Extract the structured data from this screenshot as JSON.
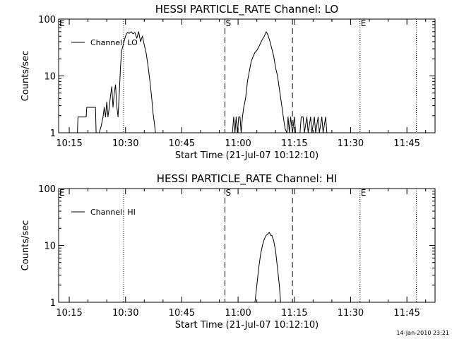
{
  "footer": {
    "timestamp": "14-Jan-2010 23:21"
  },
  "chart_data": [
    {
      "type": "line",
      "title": "HESSI PARTICLE_RATE Channel: LO",
      "xlabel": "Start Time (21-Jul-07 10:12:10)",
      "ylabel": "Counts/sec",
      "y_scale": "log",
      "ylim": [
        1,
        100
      ],
      "xlim": [
        "10:12:10",
        "11:52:30"
      ],
      "x_tick_labels": [
        "10:15",
        "10:30",
        "10:45",
        "11:00",
        "11:15",
        "11:30",
        "11:45"
      ],
      "y_tick_labels": [
        "1",
        "10",
        "100"
      ],
      "legend": {
        "position": "top-left",
        "entries": [
          "Channel: LO"
        ]
      },
      "markers": [
        {
          "label": "E",
          "time": "10:12:10",
          "style": "dotted"
        },
        {
          "label": "",
          "time": "10:29:30",
          "style": "dotted"
        },
        {
          "label": "S",
          "time": "10:56:30",
          "style": "dashed"
        },
        {
          "label": "",
          "time": "11:14:30",
          "style": "dashed"
        },
        {
          "label": "E",
          "time": "11:32:30",
          "style": "dotted"
        },
        {
          "label": "",
          "time": "11:47:30",
          "style": "dotted"
        }
      ],
      "series": [
        {
          "name": "Channel: LO",
          "segments": [
            {
              "x": [
                "10:17:10",
                "10:17:20",
                "10:19:30",
                "10:19:40",
                "10:22:00",
                "10:22:10",
                "10:23:00",
                "10:23:30",
                "10:24:00",
                "10:24:20",
                "10:24:40",
                "10:25:00",
                "10:25:20",
                "10:25:40",
                "10:26:00",
                "10:26:20",
                "10:26:40",
                "10:27:00",
                "10:27:20",
                "10:27:40",
                "10:28:00",
                "10:28:20",
                "10:28:40",
                "10:29:00",
                "10:29:30",
                "10:30:00",
                "10:30:30",
                "10:31:00",
                "10:31:30",
                "10:32:00",
                "10:32:30",
                "10:33:00",
                "10:33:30",
                "10:34:00",
                "10:34:30",
                "10:35:00",
                "10:35:30",
                "10:36:00",
                "10:36:30",
                "10:37:00",
                "10:37:20",
                "10:37:40",
                "10:38:00",
                "10:38:20"
              ],
              "y": [
                1,
                1.9,
                1.9,
                2.8,
                2.8,
                1,
                1,
                1.3,
                1.9,
                2.8,
                1.9,
                3.5,
                1.9,
                2.8,
                4.5,
                6.5,
                2.8,
                5,
                7,
                3,
                1.9,
                5,
                15,
                28,
                38,
                50,
                58,
                56,
                60,
                55,
                58,
                46,
                60,
                40,
                50,
                35,
                25,
                15,
                8,
                4,
                2.2,
                1.5,
                1,
                1
              ]
            },
            {
              "x": [
                "10:58:30",
                "10:58:50",
                "10:59:10",
                "10:59:30",
                "10:59:50",
                "11:00:10",
                "11:00:30",
                "11:00:50",
                "11:01:10",
                "11:01:30",
                "11:02:00",
                "11:02:30",
                "11:03:00",
                "11:03:30",
                "11:04:00",
                "11:04:30",
                "11:05:00",
                "11:05:30",
                "11:06:00",
                "11:06:30",
                "11:07:00",
                "11:07:30",
                "11:08:00",
                "11:08:30",
                "11:09:00",
                "11:09:30",
                "11:10:00",
                "11:10:30",
                "11:11:00",
                "11:11:30",
                "11:12:00",
                "11:12:30",
                "11:13:00",
                "11:13:20",
                "11:13:40",
                "11:14:00",
                "11:14:30",
                "11:15:00",
                "11:15:20"
              ],
              "y": [
                1,
                1.9,
                1,
                1.9,
                1,
                1.9,
                1.9,
                1,
                1.9,
                2.8,
                4,
                8,
                12,
                18,
                22,
                26,
                28,
                32,
                38,
                44,
                50,
                60,
                52,
                40,
                30,
                22,
                14,
                10,
                6,
                3.5,
                2,
                1.2,
                1,
                1.9,
                1,
                1.9,
                1,
                1.9,
                1
              ]
            },
            {
              "x": [
                "11:16:30",
                "11:16:50",
                "11:17:20",
                "11:17:40",
                "11:18:20",
                "11:18:40",
                "11:19:20",
                "11:19:40",
                "11:20:20",
                "11:20:40",
                "11:21:20",
                "11:21:40",
                "11:22:20",
                "11:22:40",
                "11:23:20",
                "11:23:40",
                "11:24:30"
              ],
              "y": [
                1,
                1.9,
                1.9,
                1,
                1.9,
                1,
                1.9,
                1,
                1.9,
                1,
                1.9,
                1,
                1.9,
                1,
                1.9,
                1,
                1
              ]
            }
          ]
        }
      ]
    },
    {
      "type": "line",
      "title": "HESSI PARTICLE_RATE Channel: HI",
      "xlabel": "Start Time (21-Jul-07 10:12:10)",
      "ylabel": "Counts/sec",
      "y_scale": "log",
      "ylim": [
        1,
        100
      ],
      "xlim": [
        "10:12:10",
        "11:52:30"
      ],
      "x_tick_labels": [
        "10:15",
        "10:30",
        "10:45",
        "11:00",
        "11:15",
        "11:30",
        "11:45"
      ],
      "y_tick_labels": [
        "1",
        "10",
        "100"
      ],
      "legend": {
        "position": "top-left",
        "entries": [
          "Channel: HI"
        ]
      },
      "markers": [
        {
          "label": "E",
          "time": "10:12:10",
          "style": "dotted"
        },
        {
          "label": "",
          "time": "10:29:30",
          "style": "dotted"
        },
        {
          "label": "S",
          "time": "10:56:30",
          "style": "dashed"
        },
        {
          "label": "",
          "time": "11:14:30",
          "style": "dashed"
        },
        {
          "label": "E",
          "time": "11:32:30",
          "style": "dotted"
        },
        {
          "label": "",
          "time": "11:47:30",
          "style": "dotted"
        }
      ],
      "series": [
        {
          "name": "Channel: HI",
          "segments": [
            {
              "x": [
                "11:04:30",
                "11:05:00",
                "11:05:30",
                "11:06:00",
                "11:06:30",
                "11:07:00",
                "11:07:30",
                "11:08:00",
                "11:08:20",
                "11:08:40",
                "11:09:00",
                "11:09:30",
                "11:10:00",
                "11:10:30",
                "11:11:00",
                "11:11:20"
              ],
              "y": [
                1,
                2,
                4,
                7,
                10,
                13,
                15,
                16,
                17,
                15,
                15,
                12,
                8,
                4,
                2,
                1
              ]
            }
          ]
        }
      ]
    }
  ]
}
